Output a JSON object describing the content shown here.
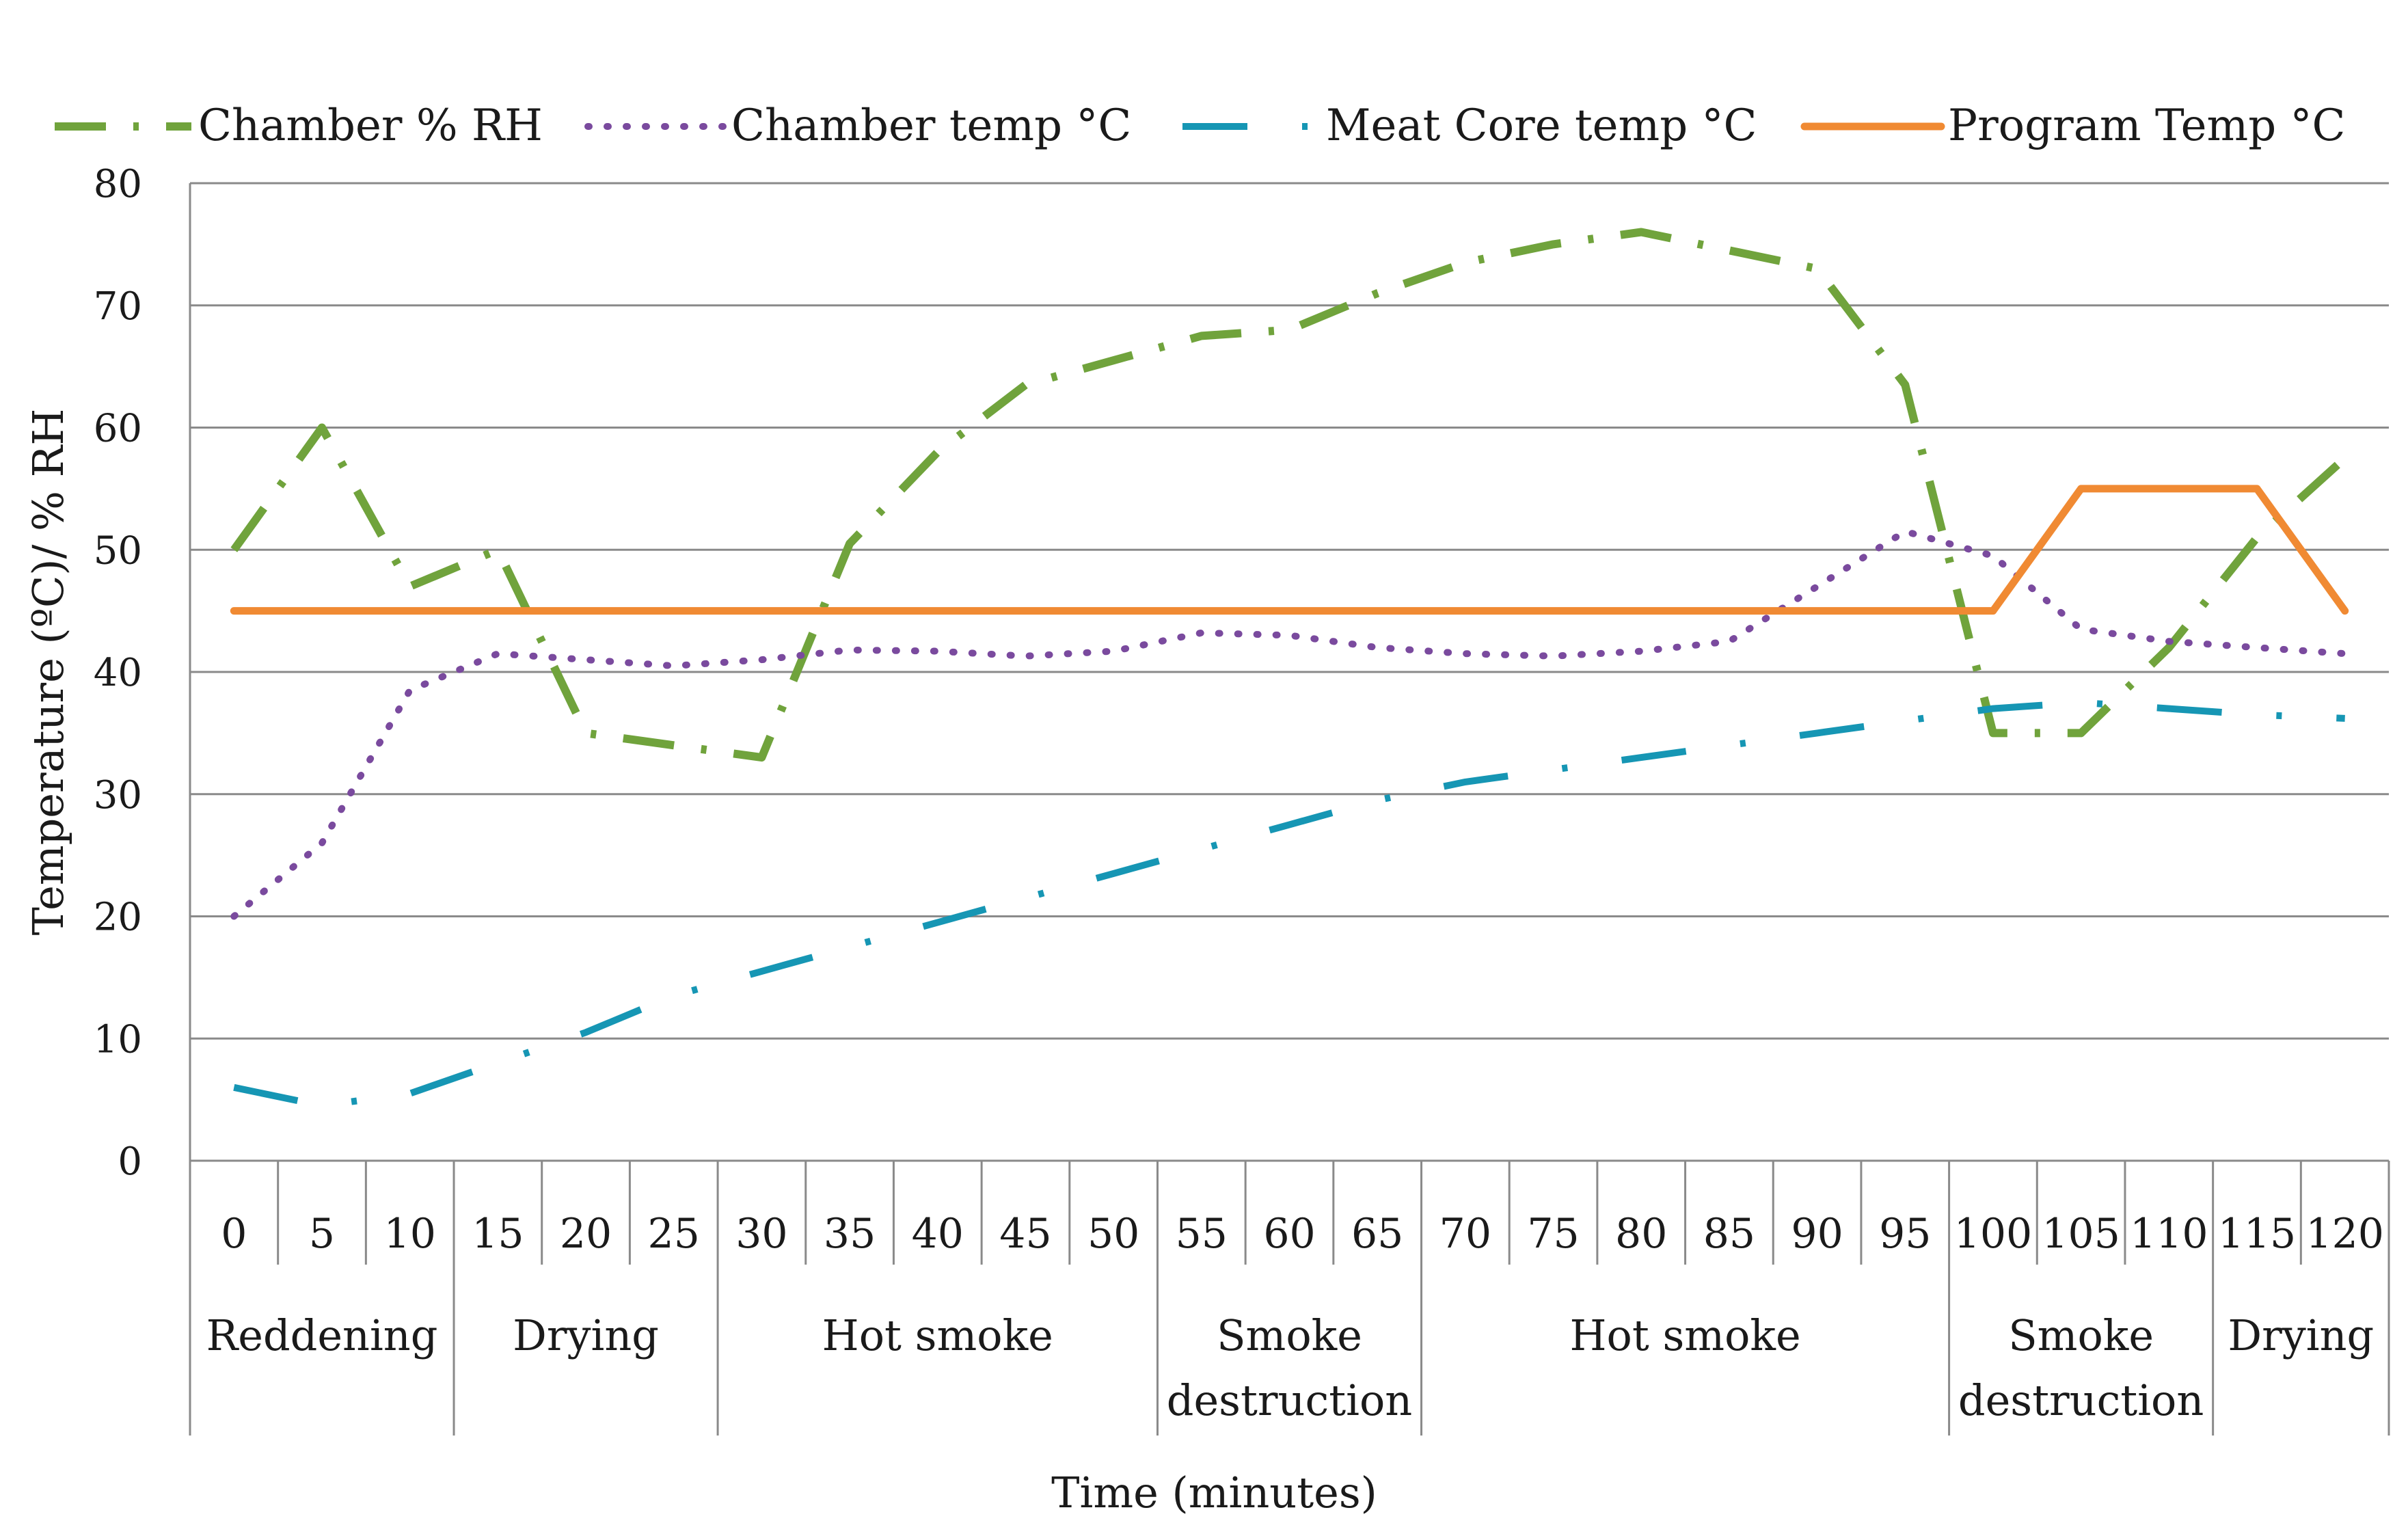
{
  "chart_data": {
    "type": "line",
    "title": "",
    "ylabel": "Temperature (ºC)/ % RH",
    "xlabel": "Time (minutes)",
    "ylim": [
      0,
      80
    ],
    "yticks": [
      "0",
      "10",
      "20",
      "30",
      "40",
      "50",
      "60",
      "70",
      "80"
    ],
    "x": [
      "0",
      "5",
      "10",
      "15",
      "20",
      "25",
      "30",
      "35",
      "40",
      "45",
      "50",
      "55",
      "60",
      "65",
      "70",
      "75",
      "80",
      "85",
      "90",
      "95",
      "100",
      "105",
      "110",
      "115",
      "120"
    ],
    "phases": [
      {
        "label": "Reddening",
        "start": 0,
        "end": 2
      },
      {
        "label": "Drying",
        "start": 3,
        "end": 5
      },
      {
        "label": "Hot smoke",
        "start": 6,
        "end": 10
      },
      {
        "label": "Smoke destruction",
        "start": 11,
        "end": 13
      },
      {
        "label": "Hot smoke",
        "start": 14,
        "end": 19
      },
      {
        "label": "Smoke destruction",
        "start": 20,
        "end": 22
      },
      {
        "label": "Drying",
        "start": 23,
        "end": 24
      }
    ],
    "legend_position": "top",
    "series": [
      {
        "name": "Chamber % RH",
        "color": "#70a33c",
        "style": "dash-dot",
        "values": [
          50,
          60,
          47,
          50,
          35,
          34,
          33,
          50.5,
          58,
          63.5,
          65.5,
          67.5,
          68,
          71,
          73.5,
          75,
          76,
          74.5,
          73,
          63.5,
          35,
          35,
          42,
          51,
          57.5
        ]
      },
      {
        "name": "Chamber temp °C",
        "color": "#7a4a9e",
        "style": "dotted",
        "values": [
          20,
          26,
          38.5,
          41.5,
          41,
          40.5,
          41,
          41.8,
          41.7,
          41.3,
          41.7,
          43.2,
          43,
          42,
          41.5,
          41.3,
          41.7,
          42.5,
          47,
          51.5,
          49.5,
          43.5,
          42.5,
          42,
          41.5
        ]
      },
      {
        "name": "Meat Core temp °C",
        "color": "#1696b4",
        "style": "long-dash-dot",
        "values": [
          6,
          4.5,
          5.5,
          8,
          10.5,
          13.5,
          15.5,
          17.5,
          19.5,
          21.5,
          23.5,
          25.5,
          27.5,
          29.5,
          31,
          32,
          33,
          34,
          35,
          36,
          37,
          37.5,
          37,
          36.5,
          36.2
        ]
      },
      {
        "name": "Program Temp °C",
        "color": "#f08a33",
        "style": "solid",
        "values": [
          45,
          45,
          45,
          45,
          45,
          45,
          45,
          45,
          45,
          45,
          45,
          45,
          45,
          45,
          45,
          45,
          45,
          45,
          45,
          45,
          45,
          55,
          55,
          55,
          45
        ]
      }
    ]
  }
}
